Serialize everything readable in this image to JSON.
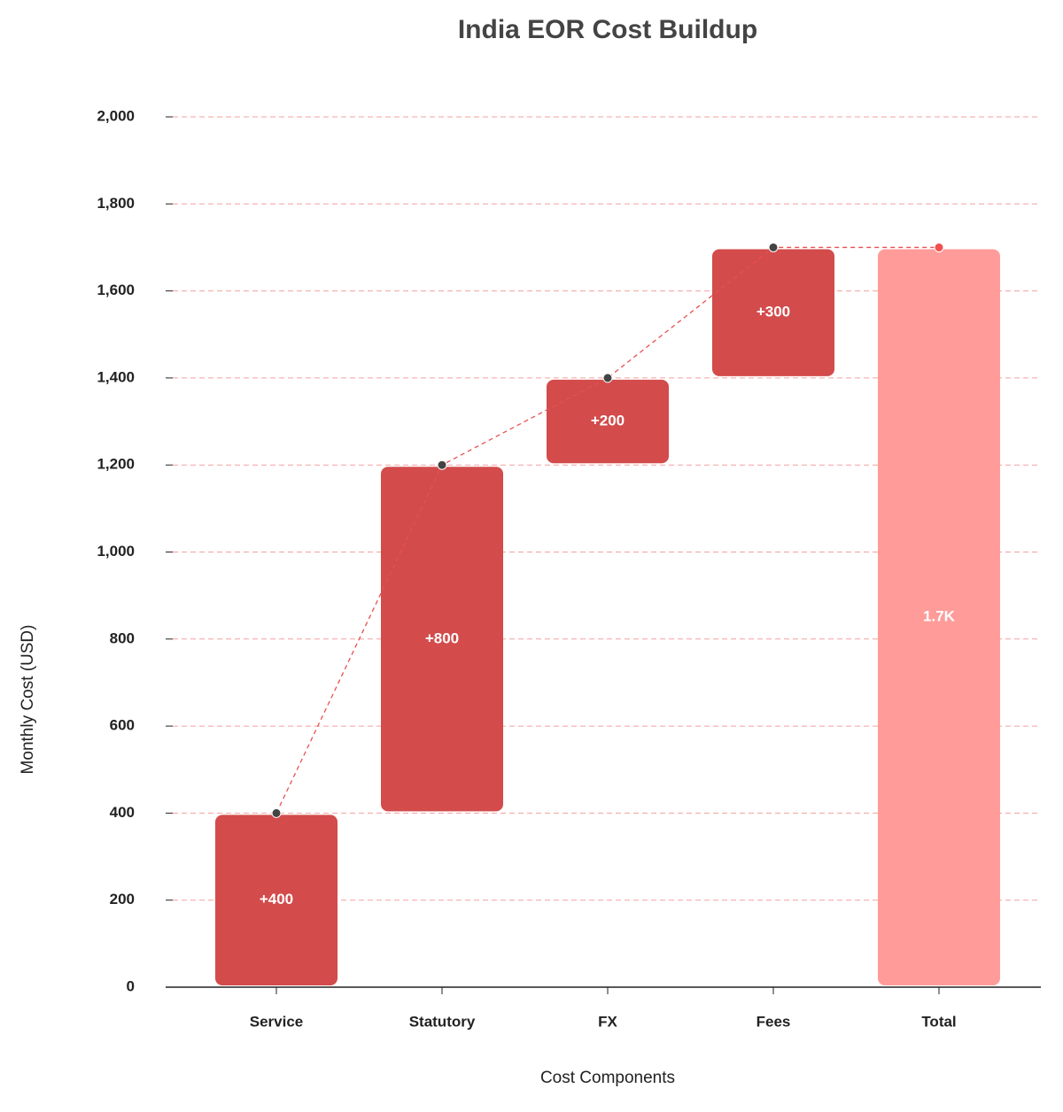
{
  "chart_data": {
    "type": "waterfall",
    "title": "India EOR Cost Buildup",
    "x_label": "Cost Components",
    "y_label": "Monthly Cost (USD)",
    "categories": [
      "Service",
      "Statutory",
      "FX",
      "Fees",
      "Total"
    ],
    "values": [
      400,
      800,
      200,
      300,
      1700
    ],
    "value_labels": [
      "+400",
      "+800",
      "+200",
      "+300",
      "1.7K"
    ],
    "measure": [
      "relative",
      "relative",
      "relative",
      "relative",
      "total"
    ],
    "color": "#d34b4b",
    "total_color": "#ff9c9a",
    "ylim": [
      0,
      2000
    ],
    "yticks": [
      0,
      200,
      400,
      600,
      800,
      {
        "value": 1000,
        "label": "1,000"
      },
      {
        "value": 1200,
        "label": "1,200"
      },
      {
        "value": 1400,
        "label": "1,400"
      },
      {
        "value": 1600,
        "label": "1,600"
      },
      {
        "value": 1800,
        "label": "1,800"
      },
      {
        "value": 2000,
        "label": "2,000"
      }
    ],
    "grid": true
  }
}
